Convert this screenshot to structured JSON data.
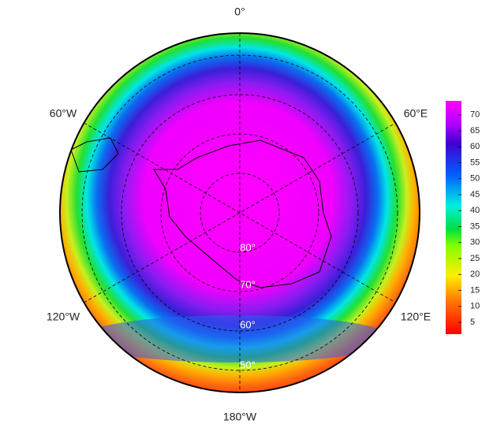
{
  "longitude_labels": [
    "0°",
    "60°E",
    "120°E",
    "180°W",
    "120°W",
    "60°W"
  ],
  "latitude_labels": [
    "80°",
    "70°",
    "60°",
    "50°"
  ],
  "colorbar": {
    "lim": [
      1.3,
      74.4
    ],
    "ticks": [
      5,
      10,
      15,
      20,
      25,
      30,
      35,
      40,
      45,
      50,
      55,
      60,
      65,
      70
    ]
  }
}
